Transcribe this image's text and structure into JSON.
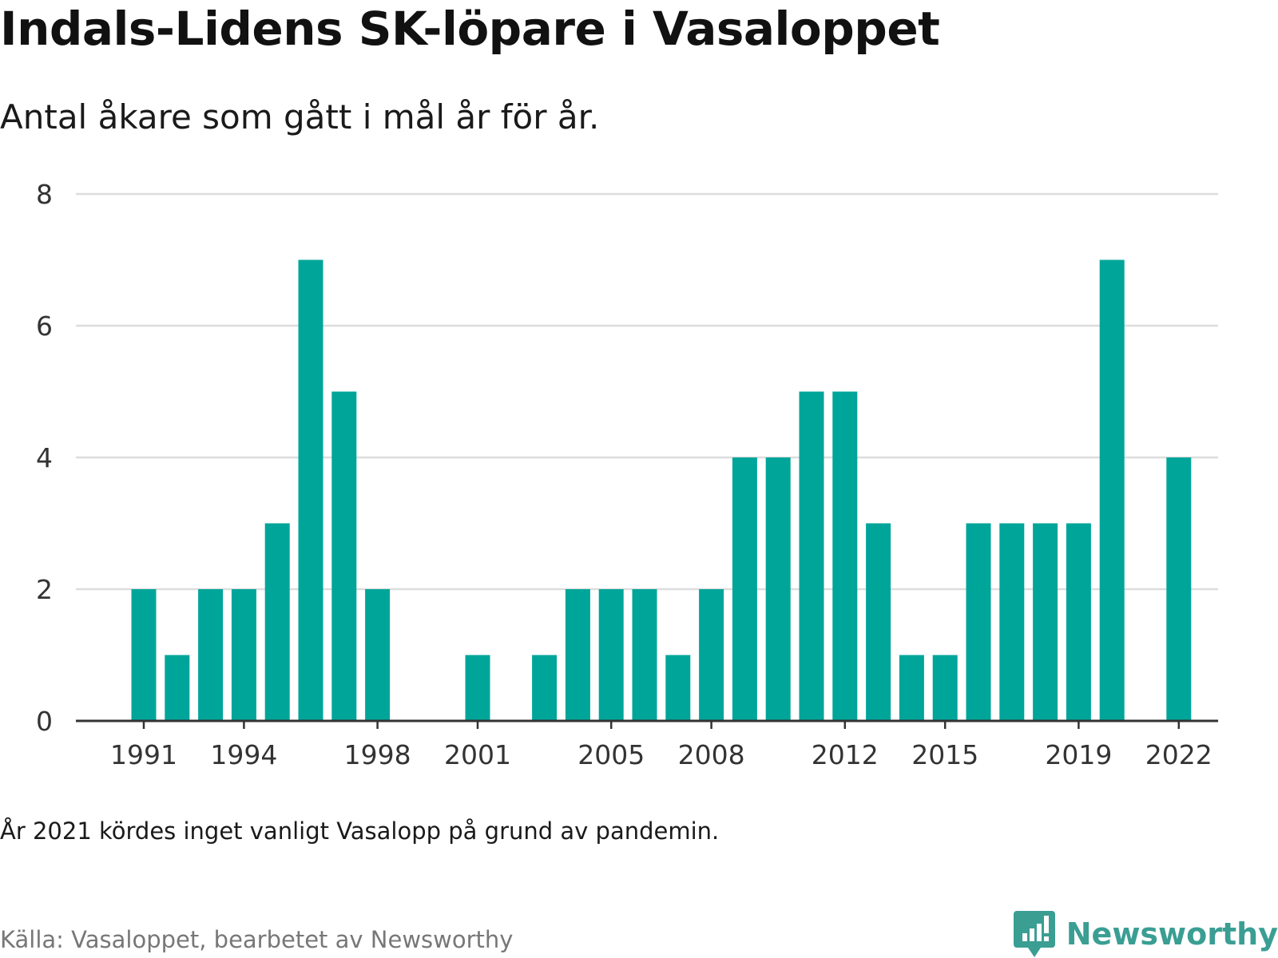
{
  "title": "Indals-Lidens SK-löpare i Vasaloppet",
  "subtitle": "Antal åkare som gått i mål år för år.",
  "note": "År 2021 kördes inget vanligt Vasalopp på grund av pandemin.",
  "source": "Källa: Vasaloppet, bearbetet av Newsworthy",
  "brand": {
    "name": "Newsworthy",
    "icon": "newsworthy-logo-icon",
    "color": "#3a9e93"
  },
  "colors": {
    "bar": "#00a59a",
    "grid": "#dddddd",
    "axis": "#333333",
    "text": "#333333"
  },
  "chart_data": {
    "type": "bar",
    "categories": [
      1991,
      1992,
      1993,
      1994,
      1995,
      1996,
      1997,
      1998,
      1999,
      2000,
      2001,
      2002,
      2003,
      2004,
      2005,
      2006,
      2007,
      2008,
      2009,
      2010,
      2011,
      2012,
      2013,
      2014,
      2015,
      2016,
      2017,
      2018,
      2019,
      2020,
      2021,
      2022
    ],
    "values": [
      2,
      1,
      2,
      2,
      3,
      7,
      5,
      2,
      0,
      0,
      1,
      0,
      1,
      2,
      2,
      2,
      1,
      2,
      4,
      4,
      5,
      5,
      3,
      1,
      1,
      3,
      3,
      3,
      3,
      7,
      0,
      4
    ],
    "xticks": [
      "1991",
      "1994",
      "1998",
      "2001",
      "2005",
      "2008",
      "2012",
      "2015",
      "2019",
      "2022"
    ],
    "yticks": [
      "0",
      "2",
      "4",
      "6",
      "8"
    ],
    "ylim": [
      0,
      8
    ],
    "grid": true
  }
}
